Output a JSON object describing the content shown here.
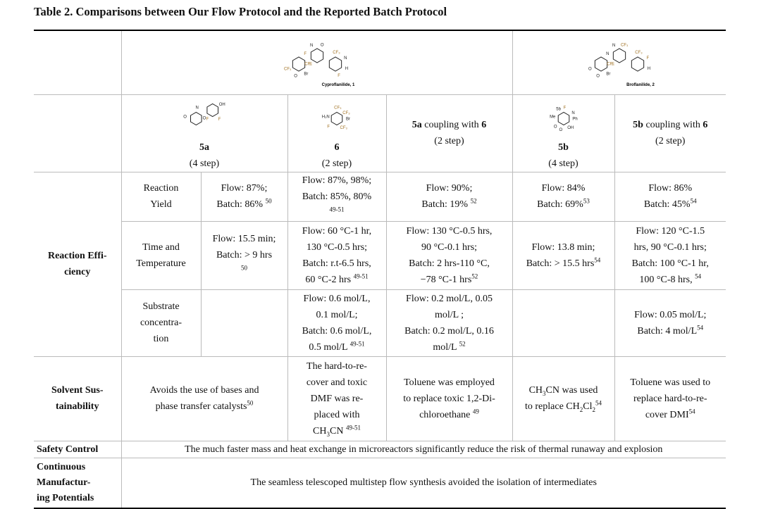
{
  "title": "Table 2. Comparisons between Our Flow Protocol and the Reported Batch Protocol",
  "cells": {
    "c_cyp": {
      "atoms": [
        "F",
        "CF₃",
        "CF₃",
        "Br",
        "F",
        "N",
        "O",
        "N",
        "H",
        "CF₃",
        "O",
        "F"
      ],
      "name": "Cyproflanilide, 1"
    },
    "c_bro": {
      "atoms": [
        "F",
        "CF₃",
        "CF₃",
        "Br",
        "N",
        "F",
        "O",
        "N",
        "H",
        "O",
        "CF₃"
      ],
      "name": "Broflanilide, 2"
    },
    "int_5a": {
      "atoms": [
        "F",
        "O",
        "N",
        "F",
        "O",
        "OH"
      ],
      "lines": [
        [
          {
            "b": "5a"
          }
        ],
        [
          "(4 step)"
        ]
      ]
    },
    "int_6": {
      "atoms": [
        "Br",
        "F",
        "CF₃",
        "CF₃",
        "H₂N",
        "CF₃"
      ],
      "lines": [
        [
          {
            "b": "6"
          }
        ],
        [
          "(2 step)"
        ]
      ]
    },
    "int_c1": {
      "lines": [
        [
          {
            "b": "5a"
          },
          " coupling with ",
          {
            "b": "6"
          }
        ],
        [
          "(2 step)"
        ]
      ]
    },
    "int_5b": {
      "atoms": [
        "Ph",
        "O",
        "F",
        "OH",
        "Me",
        "N",
        "O",
        "5b"
      ],
      "lines": [
        [
          {
            "b": "5b"
          }
        ],
        [
          "(4 step)"
        ]
      ]
    },
    "int_c2": {
      "lines": [
        [
          {
            "b": "5b"
          },
          " coupling with ",
          {
            "b": "6"
          }
        ],
        [
          "(2 step)"
        ]
      ]
    },
    "re_label": {
      "lines": [
        [
          "Reaction Effi-"
        ],
        [
          "ciency"
        ]
      ]
    },
    "y_label": {
      "lines": [
        [
          "Reaction"
        ],
        [
          "Yield"
        ]
      ]
    },
    "y_5a": {
      "lines": [
        [
          "Flow: 87%;"
        ],
        [
          "Batch: 86% ",
          {
            "sup": "50"
          }
        ]
      ]
    },
    "y_6": {
      "lines": [
        [
          "Flow: 87%, 98%;"
        ],
        [
          "Batch: 85%, 80%"
        ],
        [
          {
            "sup": "49-51"
          }
        ]
      ]
    },
    "y_c1": {
      "lines": [
        [
          "Flow: 90%;"
        ],
        [
          "Batch: 19% ",
          {
            "sup": "52"
          }
        ]
      ]
    },
    "y_5b": {
      "lines": [
        [
          "Flow: 84%"
        ],
        [
          "Batch: 69%",
          {
            "sup": "53"
          }
        ]
      ]
    },
    "y_c2": {
      "lines": [
        [
          "Flow: 86%"
        ],
        [
          "Batch: 45%",
          {
            "sup": "54"
          }
        ]
      ]
    },
    "t_label": {
      "lines": [
        [
          "Time and"
        ],
        [
          "Temperature"
        ]
      ]
    },
    "t_5a": {
      "lines": [
        [
          "Flow: 15.5 min;"
        ],
        [
          "Batch: > 9 hrs"
        ],
        [
          {
            "sup": "50"
          }
        ]
      ]
    },
    "t_6": {
      "lines": [
        [
          "Flow: 60 °C-1 hr,"
        ],
        [
          "130 °C-0.5 hrs;"
        ],
        [
          "Batch: r.t-6.5 hrs,"
        ],
        [
          "60 °C-2 hrs ",
          {
            "sup": "49-51"
          }
        ]
      ]
    },
    "t_c1": {
      "lines": [
        [
          "Flow: 130 °C-0.5 hrs,"
        ],
        [
          "90 °C-0.1 hrs;"
        ],
        [
          "Batch: 2 hrs-110 °C,"
        ],
        [
          "−78 °C-1 hrs",
          {
            "sup": "52"
          }
        ]
      ]
    },
    "t_5b": {
      "lines": [
        [
          "Flow: 13.8 min;"
        ],
        [
          "Batch: > 15.5 hrs",
          {
            "sup": "54"
          }
        ]
      ]
    },
    "t_c2": {
      "lines": [
        [
          "Flow: 120 °C-1.5"
        ],
        [
          "hrs, 90 °C-0.1 hrs;"
        ],
        [
          "Batch: 100 °C-1 hr,"
        ],
        [
          "100 °C-8 hrs, ",
          {
            "sup": "54"
          }
        ]
      ]
    },
    "s_label": {
      "lines": [
        [
          "Substrate"
        ],
        [
          "concentra-"
        ],
        [
          "tion"
        ]
      ]
    },
    "s_6": {
      "lines": [
        [
          "Flow: 0.6 mol/L,"
        ],
        [
          "0.1 mol/L;"
        ],
        [
          "Batch: 0.6 mol/L,"
        ],
        [
          "0.5 mol/L ",
          {
            "sup": "49-51"
          }
        ]
      ]
    },
    "s_c1": {
      "lines": [
        [
          "Flow: 0.2 mol/L, 0.05"
        ],
        [
          "mol/L ;"
        ],
        [
          "Batch: 0.2 mol/L, 0.16"
        ],
        [
          "mol/L ",
          {
            "sup": "52"
          }
        ]
      ]
    },
    "s_c2": {
      "lines": [
        [
          "Flow: 0.05 mol/L;"
        ],
        [
          "Batch: 4 mol/L",
          {
            "sup": "54"
          }
        ]
      ]
    },
    "sol_label": {
      "lines": [
        [
          "Solvent Sus-"
        ],
        [
          "tainability"
        ]
      ]
    },
    "sol_5a": {
      "lines": [
        [
          "Avoids the use of bases and"
        ],
        [
          "phase transfer catalysts",
          {
            "sup": "50"
          }
        ]
      ]
    },
    "sol_6": {
      "lines": [
        [
          "The hard-to-re-"
        ],
        [
          "cover and toxic"
        ],
        [
          "DMF was re-"
        ],
        [
          "placed with"
        ],
        [
          "CH",
          {
            "sub": "3"
          },
          "CN ",
          {
            "sup": "49-51"
          }
        ]
      ]
    },
    "sol_c1": {
      "lines": [
        [
          "Toluene was employed"
        ],
        [
          "to replace toxic 1,2-Di-"
        ],
        [
          "chloroethane ",
          {
            "sup": "49"
          }
        ]
      ]
    },
    "sol_5b": {
      "lines": [
        [
          "CH",
          {
            "sub": "3"
          },
          "CN was used"
        ],
        [
          "to replace CH",
          {
            "sub": "2"
          },
          "Cl",
          {
            "sub": "2"
          },
          {
            "sup": "54"
          }
        ]
      ]
    },
    "sol_c2": {
      "lines": [
        [
          "Toluene was used to"
        ],
        [
          "replace hard-to-re-"
        ],
        [
          "cover DMI",
          {
            "sup": "54"
          }
        ]
      ]
    },
    "saf_label": {
      "lines": [
        [
          "Safety Control"
        ]
      ]
    },
    "saf": {
      "lines": [
        [
          "The much faster mass and heat exchange in microreactors significantly reduce the risk of thermal runaway and explosion"
        ]
      ]
    },
    "con_label": {
      "lines": [
        [
          "Continuous"
        ],
        [
          "Manufactur-"
        ],
        [
          "ing Potentials"
        ]
      ]
    },
    "con": {
      "lines": [
        [
          "The seamless telescoped multistep flow synthesis avoided the isolation of intermediates"
        ]
      ]
    }
  }
}
